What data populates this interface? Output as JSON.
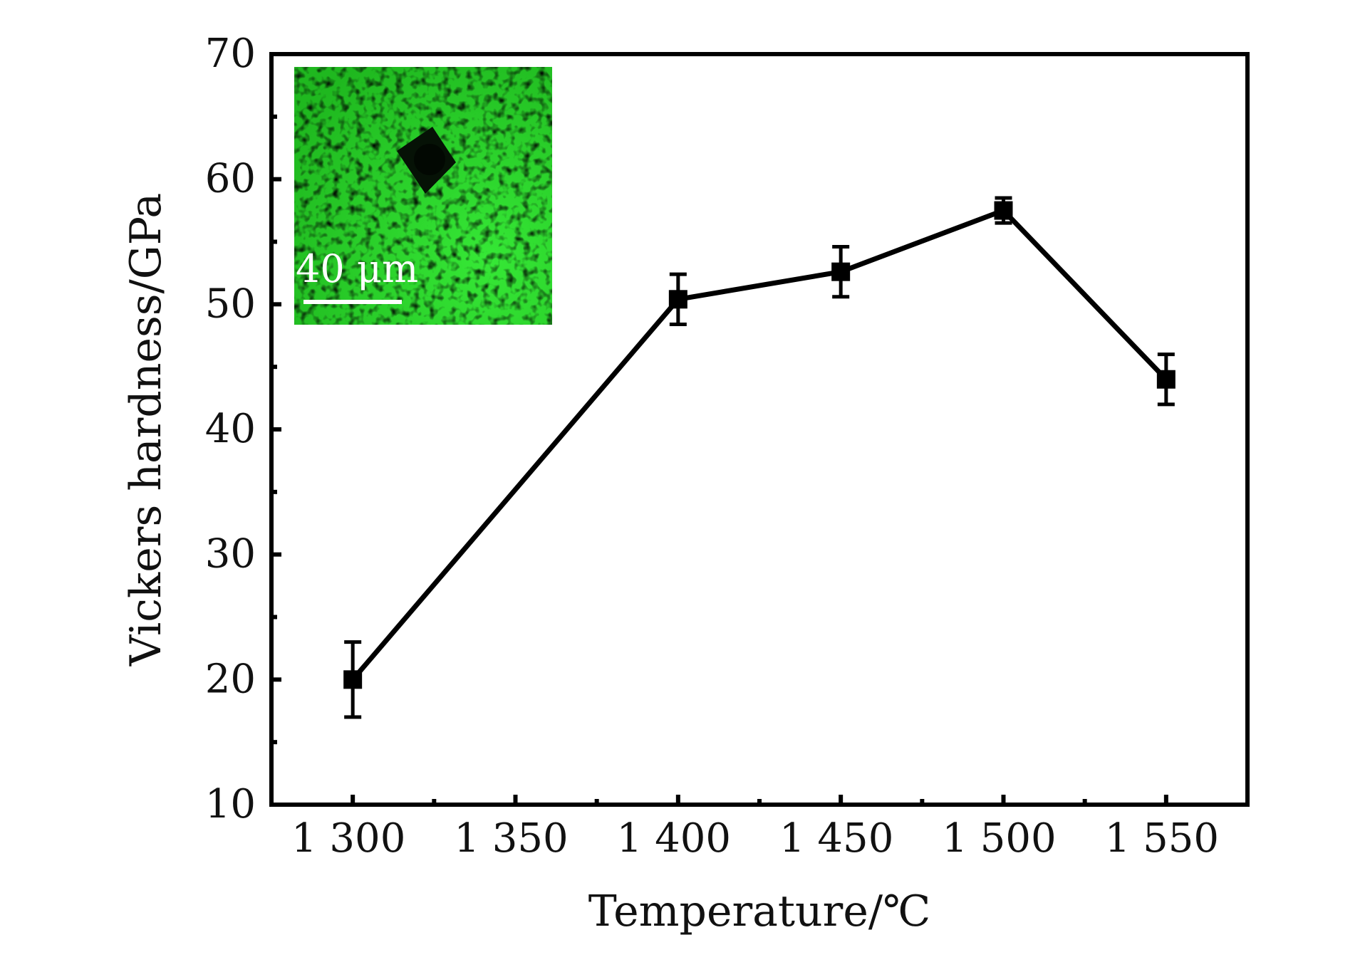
{
  "chart_data": {
    "type": "line",
    "xlabel": "Temperature/℃",
    "ylabel": "Vickers hardness/GPa",
    "xlim": [
      1275,
      1575
    ],
    "ylim": [
      10,
      70
    ],
    "x_ticks": [
      1300,
      1350,
      1400,
      1450,
      1500,
      1550
    ],
    "x_tick_labels": [
      "1 300",
      "1 350",
      "1 400",
      "1 450",
      "1 500",
      "1 550"
    ],
    "y_ticks": [
      10,
      20,
      30,
      40,
      50,
      60,
      70
    ],
    "y_tick_labels": [
      "10",
      "20",
      "30",
      "40",
      "50",
      "60",
      "70"
    ],
    "grid": false,
    "series": [
      {
        "x": [
          1300,
          1400,
          1450,
          1500,
          1550
        ],
        "y": [
          20.0,
          50.4,
          52.6,
          57.5,
          44.0
        ],
        "error": [
          3.0,
          2.0,
          2.0,
          1.0,
          2.0
        ],
        "marker": "square",
        "color": "#000000"
      }
    ],
    "inset": {
      "description_icon": "micrograph-inset",
      "scale_bar_label": "40 μm",
      "colors": {
        "background": "#2fd12f",
        "indent": "#0a1a0a",
        "scale_bar": "#ffffff"
      }
    }
  }
}
